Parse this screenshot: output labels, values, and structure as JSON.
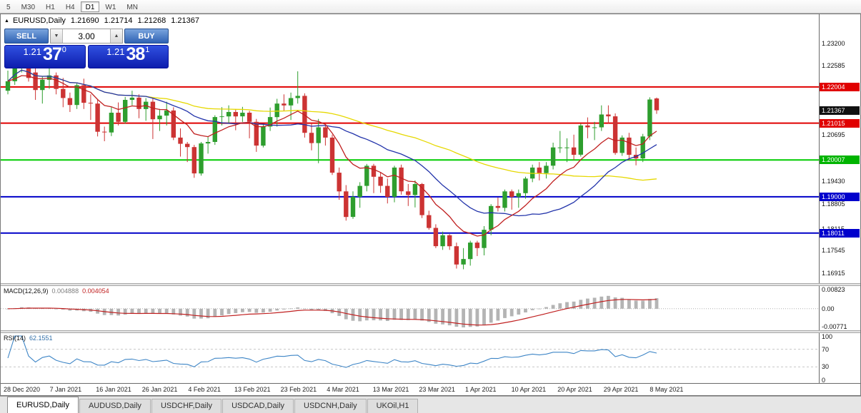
{
  "toolbar": {
    "items": [
      "5",
      "M30",
      "H1",
      "H4",
      "D1",
      "W1",
      "MN"
    ],
    "active": "D1"
  },
  "header": {
    "collapse_icon": "▲",
    "symbol": "EURUSD,Daily",
    "open": "1.21690",
    "high": "1.21714",
    "low": "1.21268",
    "close": "1.21367"
  },
  "trade_panel": {
    "sell_label": "SELL",
    "buy_label": "BUY",
    "volume": "3.00",
    "spin_down": "▼",
    "spin_up": "▲",
    "bid": {
      "prefix": "1.21",
      "big": "37",
      "sup": "0"
    },
    "ask": {
      "prefix": "1.21",
      "big": "38",
      "sup": "1"
    }
  },
  "chart_data": {
    "type": "candlestick",
    "title": "EURUSD,Daily",
    "up_color": "#2e9e2e",
    "down_color": "#cc3333",
    "x_labels": [
      "28 Dec 2020",
      "7 Jan 2021",
      "16 Jan 2021",
      "26 Jan 2021",
      "4 Feb 2021",
      "13 Feb 2021",
      "23 Feb 2021",
      "4 Mar 2021",
      "13 Mar 2021",
      "23 Mar 2021",
      "1 Apr 2021",
      "10 Apr 2021",
      "20 Apr 2021",
      "29 Apr 2021",
      "8 May 2021"
    ],
    "price_axis": {
      "min": 1.1664,
      "max": 1.2399,
      "plain_ticks": [
        "1.23200",
        "1.22585",
        "1.20695",
        "1.19430",
        "1.18805",
        "1.18115",
        "1.17545",
        "1.16915"
      ],
      "tags": [
        {
          "label": "1.22004",
          "color": "#e00000"
        },
        {
          "label": "1.21367",
          "color": "#111111"
        },
        {
          "label": "1.21015",
          "color": "#e00000"
        },
        {
          "label": "1.20007",
          "color": "#00b400"
        },
        {
          "label": "1.19000",
          "color": "#0000cc"
        },
        {
          "label": "1.18011",
          "color": "#0000cc"
        }
      ]
    },
    "hlines": [
      {
        "price": 1.22004,
        "color": "#e00000",
        "width": 2
      },
      {
        "price": 1.21015,
        "color": "#e00000",
        "width": 2
      },
      {
        "price": 1.20007,
        "color": "#00cc00",
        "width": 2
      },
      {
        "price": 1.19,
        "color": "#0000c8",
        "width": 2
      },
      {
        "price": 1.18011,
        "color": "#0000c8",
        "width": 2
      }
    ],
    "moving_averages": [
      {
        "type": "sma",
        "period": 50,
        "color": "#e6d800"
      },
      {
        "type": "sma",
        "period": 21,
        "color": "#2233aa"
      },
      {
        "type": "ema",
        "period": 10,
        "color": "#c02020"
      }
    ],
    "candles": [
      [
        1.219,
        1.2245,
        1.218,
        1.2216
      ],
      [
        1.2216,
        1.2268,
        1.2206,
        1.2252
      ],
      [
        1.2252,
        1.229,
        1.224,
        1.2271
      ],
      [
        1.2271,
        1.2305,
        1.2215,
        1.2225
      ],
      [
        1.224,
        1.2258,
        1.2165,
        1.2192
      ],
      [
        1.2192,
        1.223,
        1.2155,
        1.222
      ],
      [
        1.222,
        1.2255,
        1.2195,
        1.2232
      ],
      [
        1.2232,
        1.224,
        1.218,
        1.2195
      ],
      [
        1.2195,
        1.2225,
        1.2145,
        1.217
      ],
      [
        1.217,
        1.2185,
        1.2132,
        1.2151
      ],
      [
        1.2151,
        1.221,
        1.214,
        1.2205
      ],
      [
        1.2205,
        1.2223,
        1.214,
        1.2157
      ],
      [
        1.2157,
        1.218,
        1.211,
        1.2155
      ],
      [
        1.2155,
        1.2165,
        1.2065,
        1.2078
      ],
      [
        1.2078,
        1.2092,
        1.2052,
        1.2076
      ],
      [
        1.2076,
        1.2145,
        1.2066,
        1.213
      ],
      [
        1.213,
        1.2158,
        1.2095,
        1.2105
      ],
      [
        1.2105,
        1.2173,
        1.21,
        1.2165
      ],
      [
        1.2165,
        1.219,
        1.215,
        1.2171
      ],
      [
        1.2171,
        1.218,
        1.2115,
        1.214
      ],
      [
        1.214,
        1.217,
        1.2108,
        1.216
      ],
      [
        1.216,
        1.217,
        1.2058,
        1.2112
      ],
      [
        1.2112,
        1.214,
        1.208,
        1.2122
      ],
      [
        1.2122,
        1.216,
        1.2095,
        1.2136
      ],
      [
        1.2136,
        1.2145,
        1.2055,
        1.2062
      ],
      [
        1.2062,
        1.2087,
        1.201,
        1.2045
      ],
      [
        1.2045,
        1.205,
        1.1995,
        1.2036
      ],
      [
        1.2036,
        1.2042,
        1.1952,
        1.1964
      ],
      [
        1.1964,
        1.205,
        1.1958,
        1.2046
      ],
      [
        1.2046,
        1.2065,
        1.2018,
        1.205
      ],
      [
        1.205,
        1.2123,
        1.2042,
        1.2118
      ],
      [
        1.2118,
        1.2145,
        1.2095,
        1.212
      ],
      [
        1.212,
        1.215,
        1.21,
        1.2132
      ],
      [
        1.2132,
        1.214,
        1.2082,
        1.212
      ],
      [
        1.212,
        1.2146,
        1.2105,
        1.213
      ],
      [
        1.213,
        1.2135,
        1.206,
        1.2105
      ],
      [
        1.2105,
        1.2113,
        1.2023,
        1.204
      ],
      [
        1.204,
        1.2098,
        1.2035,
        1.2092
      ],
      [
        1.2092,
        1.2144,
        1.208,
        1.2118
      ],
      [
        1.2118,
        1.2168,
        1.2092,
        1.2155
      ],
      [
        1.2155,
        1.218,
        1.2135,
        1.215
      ],
      [
        1.215,
        1.2185,
        1.211,
        1.217
      ],
      [
        1.217,
        1.2243,
        1.2155,
        1.2176
      ],
      [
        1.2176,
        1.2183,
        1.2062,
        1.2075
      ],
      [
        1.2075,
        1.2101,
        1.2027,
        1.2047
      ],
      [
        1.2047,
        1.2113,
        1.1992,
        1.209
      ],
      [
        1.209,
        1.2094,
        1.204,
        1.2062
      ],
      [
        1.2062,
        1.207,
        1.196,
        1.1966
      ],
      [
        1.1966,
        1.198,
        1.1892,
        1.1915
      ],
      [
        1.1915,
        1.1932,
        1.1835,
        1.1845
      ],
      [
        1.1845,
        1.1915,
        1.184,
        1.19
      ],
      [
        1.19,
        1.194,
        1.187,
        1.193
      ],
      [
        1.193,
        1.199,
        1.1915,
        1.1985
      ],
      [
        1.1985,
        1.199,
        1.191,
        1.1955
      ],
      [
        1.1955,
        1.1967,
        1.1911,
        1.193
      ],
      [
        1.193,
        1.195,
        1.1882,
        1.19
      ],
      [
        1.19,
        1.1985,
        1.1885,
        1.198
      ],
      [
        1.198,
        1.1988,
        1.1906,
        1.1915
      ],
      [
        1.1915,
        1.1935,
        1.1875,
        1.1905
      ],
      [
        1.1905,
        1.1945,
        1.1871,
        1.1935
      ],
      [
        1.1935,
        1.1938,
        1.1842,
        1.185
      ],
      [
        1.185,
        1.1862,
        1.181,
        1.1815
      ],
      [
        1.1815,
        1.1825,
        1.176,
        1.1765
      ],
      [
        1.1765,
        1.1805,
        1.1755,
        1.1795
      ],
      [
        1.1795,
        1.1798,
        1.1755,
        1.1765
      ],
      [
        1.1765,
        1.1775,
        1.1704,
        1.1715
      ],
      [
        1.1715,
        1.176,
        1.1702,
        1.173
      ],
      [
        1.173,
        1.178,
        1.1712,
        1.1775
      ],
      [
        1.1775,
        1.178,
        1.1738,
        1.176
      ],
      [
        1.176,
        1.182,
        1.174,
        1.181
      ],
      [
        1.181,
        1.188,
        1.1795,
        1.1875
      ],
      [
        1.1875,
        1.1898,
        1.186,
        1.187
      ],
      [
        1.187,
        1.192,
        1.186,
        1.1915
      ],
      [
        1.1915,
        1.192,
        1.1865,
        1.19
      ],
      [
        1.19,
        1.192,
        1.187,
        1.191
      ],
      [
        1.191,
        1.1955,
        1.1895,
        1.195
      ],
      [
        1.195,
        1.1988,
        1.194,
        1.198
      ],
      [
        1.198,
        1.1995,
        1.1945,
        1.1965
      ],
      [
        1.1965,
        1.1995,
        1.195,
        1.1985
      ],
      [
        1.1985,
        1.2048,
        1.1975,
        1.2035
      ],
      [
        1.2035,
        1.208,
        1.202,
        1.2035
      ],
      [
        1.2035,
        1.206,
        1.1995,
        1.2035
      ],
      [
        1.2035,
        1.207,
        1.2,
        1.2015
      ],
      [
        1.2015,
        1.21,
        1.201,
        1.2095
      ],
      [
        1.2095,
        1.2117,
        1.206,
        1.209
      ],
      [
        1.209,
        1.2105,
        1.2055,
        1.209
      ],
      [
        1.209,
        1.215,
        1.208,
        1.2125
      ],
      [
        1.2125,
        1.215,
        1.21,
        1.212
      ],
      [
        1.212,
        1.2128,
        1.2015,
        1.202
      ],
      [
        1.202,
        1.2068,
        1.2012,
        1.2062
      ],
      [
        1.2062,
        1.2075,
        1.1999,
        1.2015
      ],
      [
        1.2015,
        1.2035,
        1.1986,
        1.2005
      ],
      [
        1.2005,
        1.2072,
        1.1995,
        1.2065
      ],
      [
        1.2065,
        1.2172,
        1.2055,
        1.2166
      ],
      [
        1.2169,
        1.21714,
        1.21268,
        1.21367
      ]
    ],
    "macd": {
      "label": "MACD(12,26,9)",
      "value_main": "0.004888",
      "value_signal": "0.004054",
      "fast": 12,
      "slow": 26,
      "signal": 9,
      "hist_color": "#b4b4b4",
      "signal_color": "#c02020",
      "axis": {
        "max": 0.00823,
        "min": -0.00771,
        "labels": [
          {
            "v": 0.00823,
            "text": "0.00823"
          },
          {
            "v": 0,
            "text": "0.00"
          },
          {
            "v": -0.00771,
            "text": "-0.00771"
          }
        ]
      }
    },
    "rsi": {
      "label": "RSI(14)",
      "value": "62.1551",
      "period": 14,
      "color": "#3d85c6",
      "levels": [
        70,
        30
      ],
      "axis_labels": [
        {
          "v": 100,
          "text": "100"
        },
        {
          "v": 70,
          "text": "70"
        },
        {
          "v": 30,
          "text": "30"
        },
        {
          "v": 0,
          "text": "0"
        }
      ]
    }
  },
  "tabs": {
    "items": [
      {
        "label": "EURUSD,Daily",
        "active": true
      },
      {
        "label": "AUDUSD,Daily",
        "active": false
      },
      {
        "label": "USDCHF,Daily",
        "active": false
      },
      {
        "label": "USDCAD,Daily",
        "active": false
      },
      {
        "label": "USDCNH,Daily",
        "active": false
      },
      {
        "label": "UKOil,H1",
        "active": false
      }
    ]
  }
}
